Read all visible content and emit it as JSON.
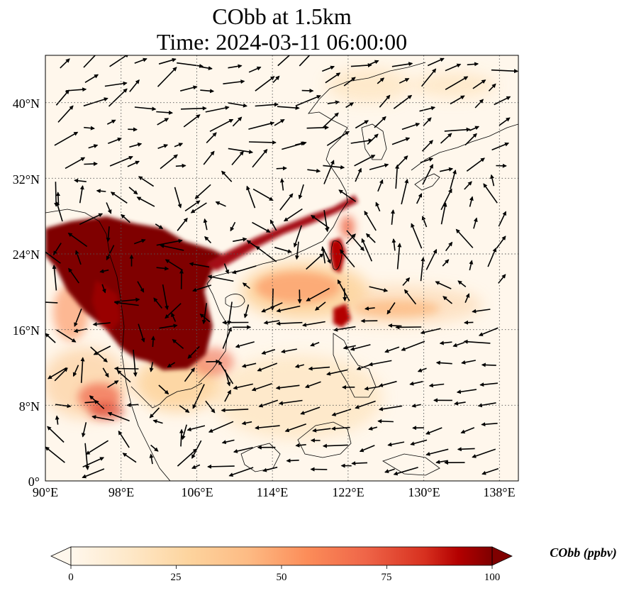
{
  "title_line1": "CObb at 1.5km",
  "title_line2": "Time: 2024-03-11 06:00:00",
  "map": {
    "lon_range": [
      90,
      140
    ],
    "lat_range": [
      0,
      45
    ],
    "x_ticks": [
      {
        "value": 90,
        "label": "90°E"
      },
      {
        "value": 98,
        "label": "98°E"
      },
      {
        "value": 106,
        "label": "106°E"
      },
      {
        "value": 114,
        "label": "114°E"
      },
      {
        "value": 122,
        "label": "122°E"
      },
      {
        "value": 130,
        "label": "130°E"
      },
      {
        "value": 138,
        "label": "138°E"
      }
    ],
    "y_ticks": [
      {
        "value": 0,
        "label": "0°"
      },
      {
        "value": 8,
        "label": "8°N"
      },
      {
        "value": 16,
        "label": "16°N"
      },
      {
        "value": 24,
        "label": "24°N"
      },
      {
        "value": 32,
        "label": "32°N"
      },
      {
        "value": 40,
        "label": "40°N"
      }
    ],
    "gridlines": "dotted",
    "colormap": "OrRd",
    "colors": {
      "low": "#fff7ec",
      "mid": "#fc8d59",
      "high": "#7f0000"
    }
  },
  "colorbar": {
    "min": 0,
    "max": 100,
    "extend": "both",
    "ticks": [
      "0",
      "25",
      "50",
      "75",
      "100"
    ],
    "label": "CObb (ppbv)"
  }
}
